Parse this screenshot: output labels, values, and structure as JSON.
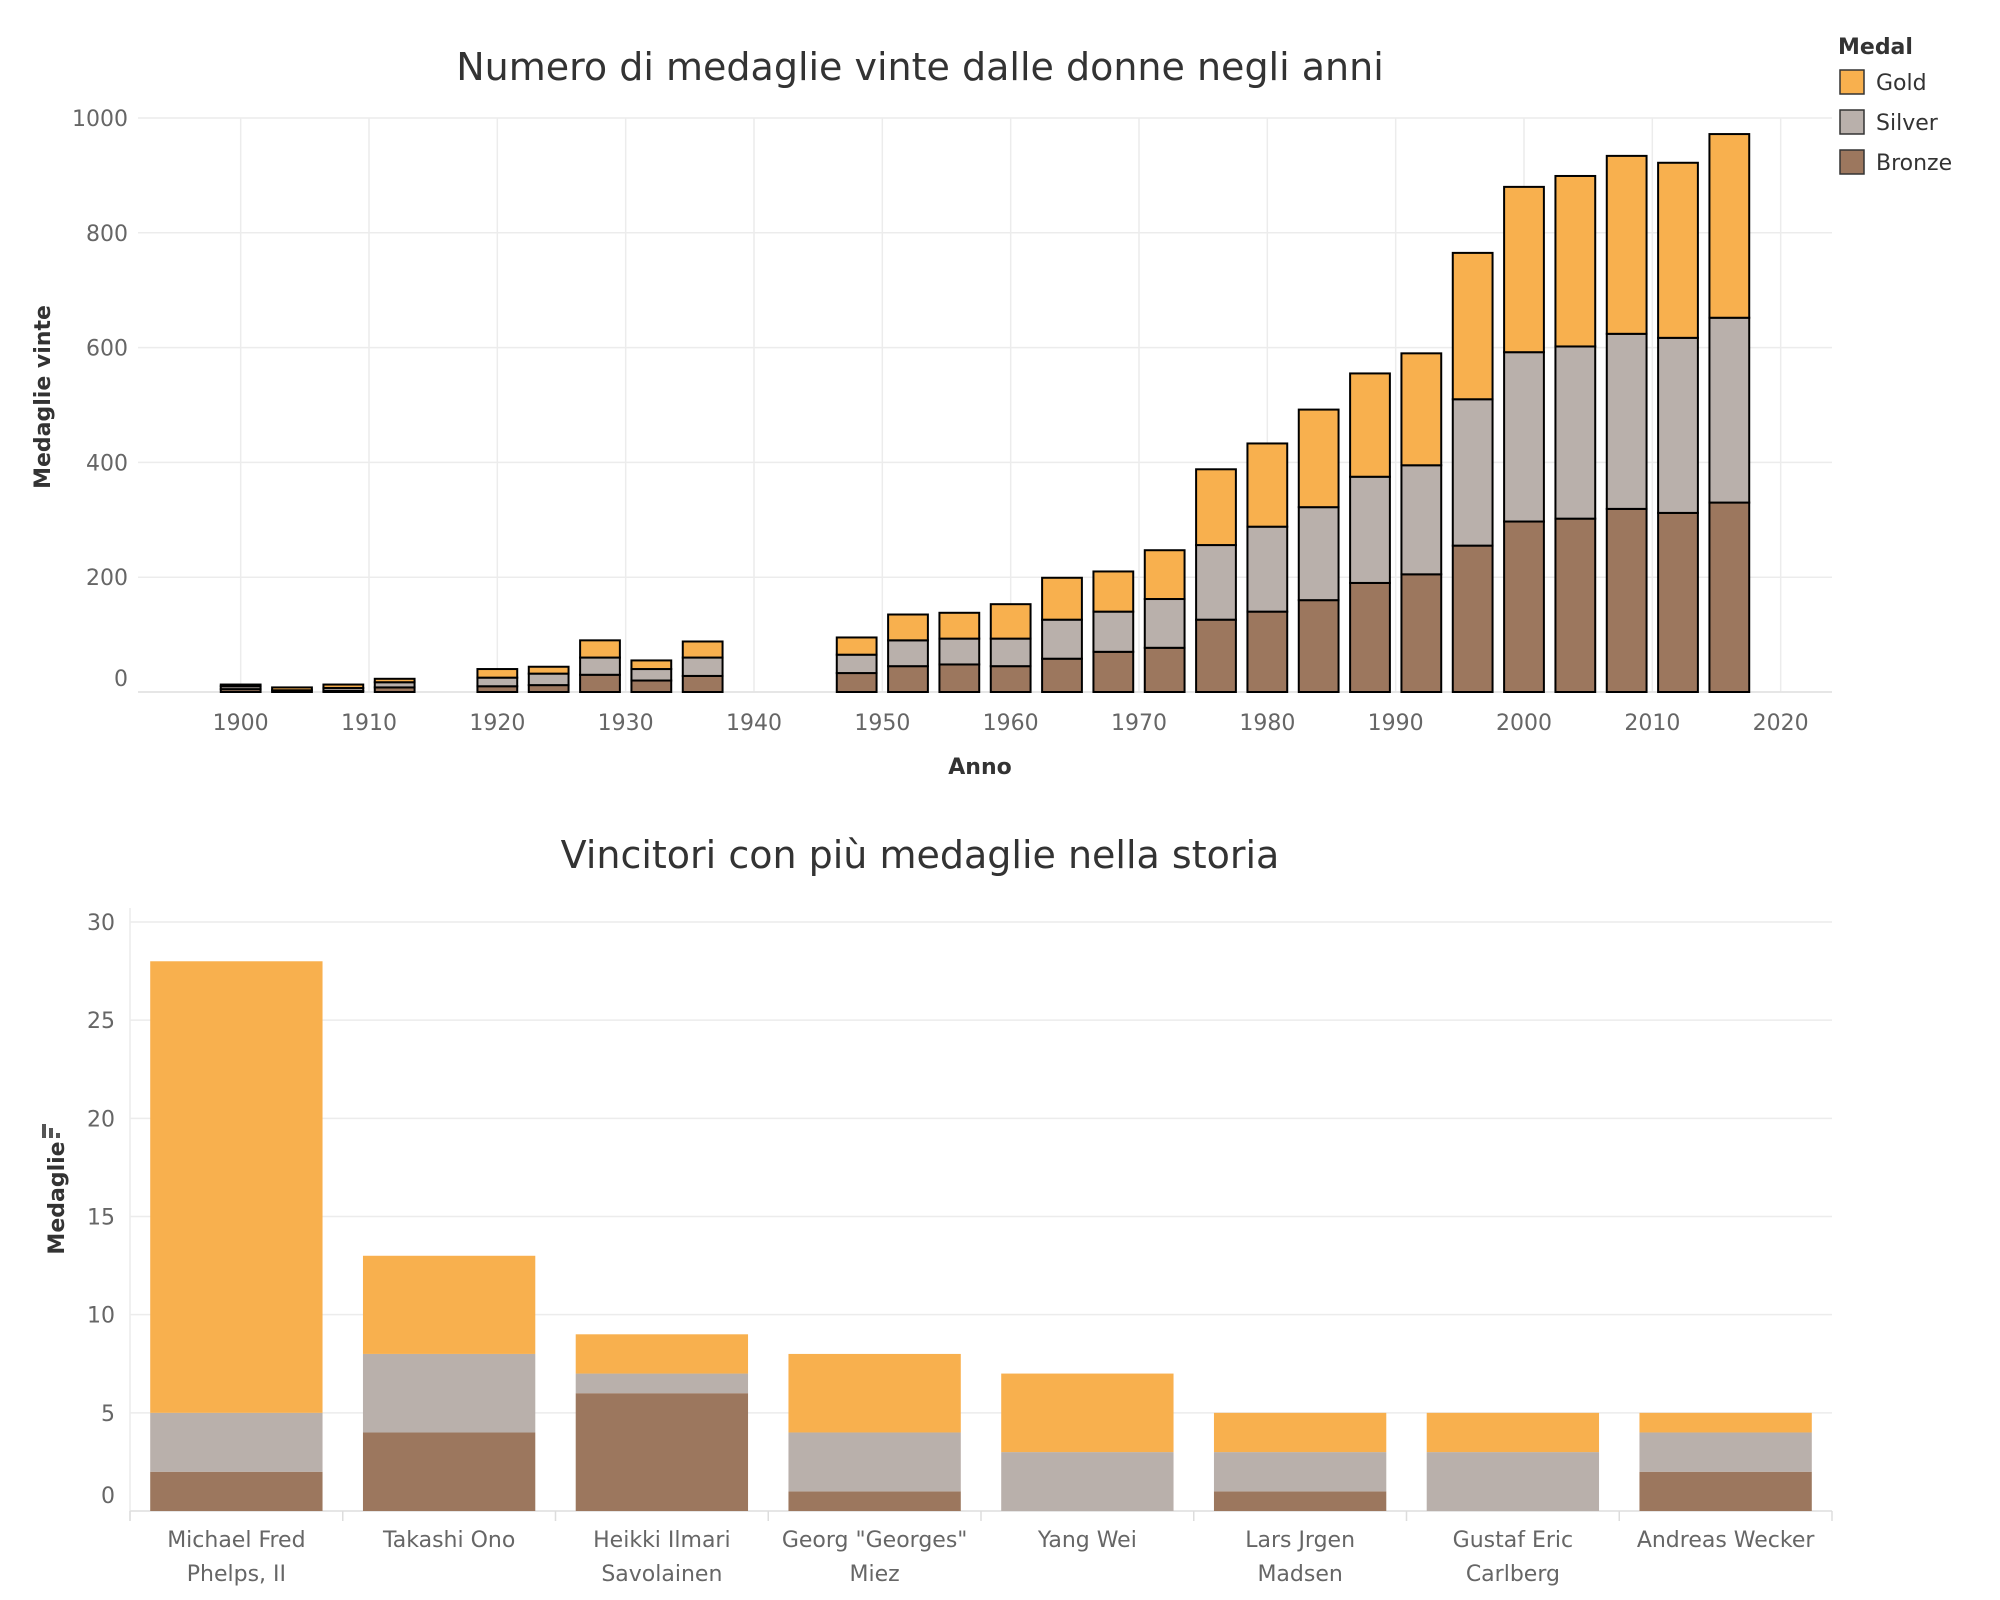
{
  "legend": {
    "title": "Medal",
    "items": [
      {
        "label": "Gold",
        "color": "#F8B04E"
      },
      {
        "label": "Silver",
        "color": "#B9B0AB"
      },
      {
        "label": "Bronze",
        "color": "#9C775E"
      }
    ]
  },
  "chart_data": [
    {
      "type": "bar",
      "stacked": true,
      "title": "Numero di medaglie vinte dalle donne negli anni",
      "xlabel": "Anno",
      "ylabel": "Medaglie vinte",
      "xlim": [
        1892,
        2024
      ],
      "ylim": [
        0,
        1000
      ],
      "x_ticks": [
        1900,
        1910,
        1920,
        1930,
        1940,
        1950,
        1960,
        1970,
        1980,
        1990,
        2000,
        2010,
        2020
      ],
      "y_ticks": [
        0,
        200,
        400,
        600,
        800,
        1000
      ],
      "grid": true,
      "legend_position": "top-right",
      "bar_outline": "#000000",
      "x": [
        1900,
        1904,
        1908,
        1912,
        1920,
        1924,
        1928,
        1932,
        1936,
        1948,
        1952,
        1956,
        1960,
        1964,
        1968,
        1972,
        1976,
        1980,
        1984,
        1988,
        1992,
        1996,
        2000,
        2004,
        2008,
        2012,
        2016
      ],
      "series": [
        {
          "name": "Bronze",
          "color": "#9C775E",
          "values": [
            5,
            0,
            2,
            8,
            10,
            12,
            30,
            20,
            28,
            33,
            45,
            48,
            45,
            58,
            70,
            77,
            126,
            140,
            160,
            190,
            205,
            255,
            297,
            302,
            319,
            312,
            330
          ]
        },
        {
          "name": "Silver",
          "color": "#B9B0AB",
          "values": [
            5,
            3,
            5,
            9,
            15,
            20,
            30,
            20,
            32,
            32,
            45,
            45,
            48,
            68,
            70,
            85,
            130,
            148,
            162,
            185,
            190,
            255,
            295,
            300,
            305,
            305,
            322
          ]
        },
        {
          "name": "Gold",
          "color": "#F8B04E",
          "values": [
            3,
            5,
            6,
            6,
            15,
            12,
            30,
            15,
            28,
            30,
            45,
            45,
            60,
            73,
            70,
            85,
            132,
            145,
            170,
            180,
            195,
            255,
            288,
            297,
            310,
            305,
            320
          ]
        }
      ]
    },
    {
      "type": "bar",
      "stacked": true,
      "title": "Vincitori con più medaglie nella storia",
      "xlabel": "",
      "ylabel": "Medaglie",
      "ylim": [
        0,
        30
      ],
      "y_ticks": [
        0,
        5,
        10,
        15,
        20,
        25,
        30
      ],
      "grid": true,
      "categories": [
        [
          "Michael Fred",
          "Phelps, II"
        ],
        [
          "Takashi Ono"
        ],
        [
          "Heikki Ilmari",
          "Savolainen"
        ],
        [
          "Georg \"Georges\"",
          "Miez"
        ],
        [
          "Yang Wei"
        ],
        [
          "Lars Jrgen",
          "Madsen"
        ],
        [
          "Gustaf Eric",
          "Carlberg"
        ],
        [
          "Andreas Wecker"
        ]
      ],
      "series": [
        {
          "name": "Bronze",
          "color": "#9C775E",
          "values": [
            2,
            4,
            6,
            1,
            0,
            1,
            0,
            2
          ]
        },
        {
          "name": "Silver",
          "color": "#B9B0AB",
          "values": [
            3,
            4,
            1,
            3,
            3,
            2,
            3,
            2
          ]
        },
        {
          "name": "Gold",
          "color": "#F8B04E",
          "values": [
            23,
            5,
            2,
            4,
            4,
            2,
            2,
            1
          ]
        }
      ]
    }
  ]
}
